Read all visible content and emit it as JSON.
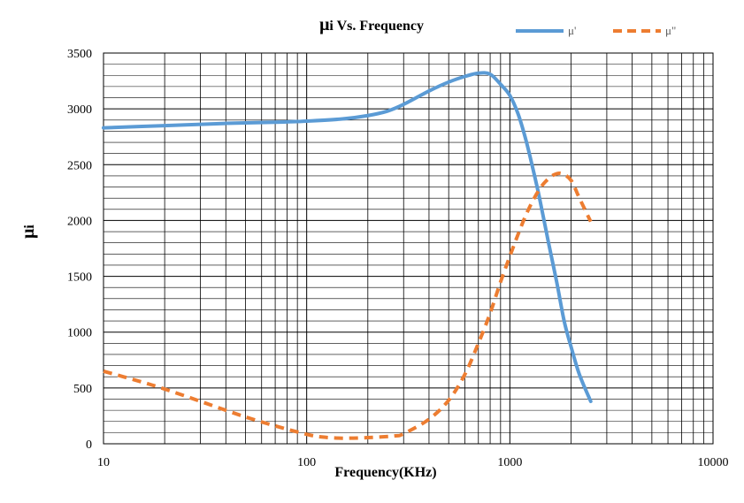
{
  "chart_data": {
    "type": "line",
    "title_symbol": "μ",
    "title_subscript": "i",
    "title_rest": " Vs. Frequency",
    "xlabel": "Frequency(KHz)",
    "ylabel_symbol": "μ",
    "ylabel_subscript": "i",
    "x_scale": "log",
    "xlim": [
      10,
      10000
    ],
    "ylim": [
      0,
      3500
    ],
    "x_ticks": [
      10,
      100,
      1000,
      10000
    ],
    "x_tick_labels": [
      "10",
      "100",
      "1000",
      "10000"
    ],
    "y_ticks": [
      0,
      500,
      1000,
      1500,
      2000,
      2500,
      3000,
      3500
    ],
    "y_tick_labels": [
      "0",
      "500",
      "1000",
      "1500",
      "2000",
      "2500",
      "3000",
      "3500"
    ],
    "grid": true,
    "legend_position": "top-right",
    "series": [
      {
        "name": "μ'",
        "color": "#5b9bd5",
        "style": "solid",
        "points": [
          [
            10,
            2830
          ],
          [
            20,
            2850
          ],
          [
            40,
            2870
          ],
          [
            70,
            2880
          ],
          [
            100,
            2890
          ],
          [
            150,
            2910
          ],
          [
            200,
            2940
          ],
          [
            250,
            2980
          ],
          [
            300,
            3040
          ],
          [
            400,
            3160
          ],
          [
            500,
            3240
          ],
          [
            600,
            3290
          ],
          [
            700,
            3320
          ],
          [
            800,
            3310
          ],
          [
            900,
            3220
          ],
          [
            1000,
            3120
          ],
          [
            1100,
            2950
          ],
          [
            1200,
            2720
          ],
          [
            1300,
            2460
          ],
          [
            1400,
            2200
          ],
          [
            1550,
            1800
          ],
          [
            1700,
            1450
          ],
          [
            1850,
            1100
          ],
          [
            2000,
            870
          ],
          [
            2200,
            620
          ],
          [
            2500,
            380
          ]
        ]
      },
      {
        "name": "μ\"",
        "color": "#ed7d31",
        "style": "dashed",
        "points": [
          [
            10,
            650
          ],
          [
            15,
            560
          ],
          [
            20,
            490
          ],
          [
            30,
            380
          ],
          [
            40,
            300
          ],
          [
            50,
            240
          ],
          [
            70,
            160
          ],
          [
            100,
            85
          ],
          [
            120,
            60
          ],
          [
            150,
            50
          ],
          [
            200,
            55
          ],
          [
            270,
            70
          ],
          [
            300,
            90
          ],
          [
            400,
            220
          ],
          [
            500,
            390
          ],
          [
            600,
            620
          ],
          [
            700,
            900
          ],
          [
            800,
            1170
          ],
          [
            900,
            1450
          ],
          [
            1000,
            1680
          ],
          [
            1100,
            1880
          ],
          [
            1200,
            2050
          ],
          [
            1300,
            2180
          ],
          [
            1400,
            2280
          ],
          [
            1500,
            2350
          ],
          [
            1650,
            2410
          ],
          [
            1800,
            2420
          ],
          [
            2000,
            2360
          ],
          [
            2200,
            2200
          ],
          [
            2500,
            1990
          ]
        ]
      }
    ]
  }
}
